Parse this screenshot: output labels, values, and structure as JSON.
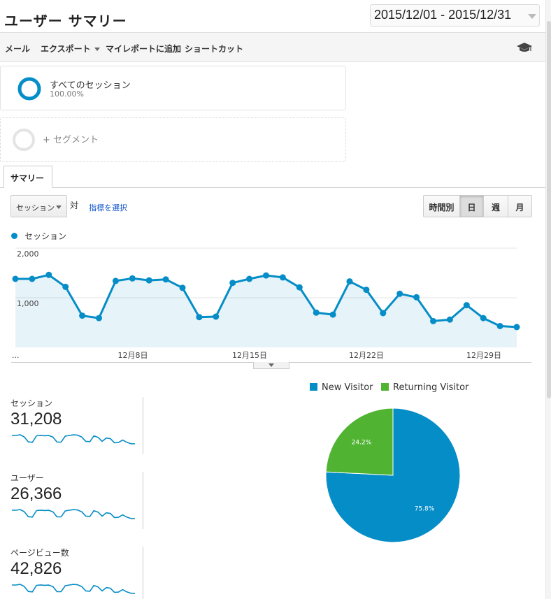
{
  "header": {
    "title": "ユーザー サマリー",
    "date_range": "2015/12/01 - 2015/12/31"
  },
  "toolbar": {
    "mail": "メール",
    "export": "エクスポート",
    "add_to_dashboard": "マイレポートに追加",
    "shortcut": "ショートカット",
    "icon": "graduation-cap-icon"
  },
  "segments": {
    "all_sessions": {
      "name": "すべてのセッション",
      "percent": "100.00%"
    },
    "add_segment": "+ セグメント"
  },
  "tabs": {
    "summary": "サマリー"
  },
  "controls": {
    "metric": "セッション",
    "vs": "対",
    "select_metric": "指標を選択",
    "granularity": [
      "時間別",
      "日",
      "週",
      "月"
    ],
    "active_granularity": "日"
  },
  "colors": {
    "accent": "#058dc7",
    "returning": "#50b432"
  },
  "chart_data": [
    {
      "type": "area",
      "series": [
        {
          "name": "セッション",
          "values": [
            1380,
            1380,
            1460,
            1220,
            640,
            590,
            1340,
            1390,
            1350,
            1370,
            1200,
            610,
            620,
            1300,
            1380,
            1450,
            1410,
            1210,
            700,
            660,
            1330,
            1160,
            690,
            1080,
            1010,
            530,
            560,
            850,
            590,
            430,
            410
          ]
        }
      ],
      "x": [
        "2015-12-01",
        "2015-12-02",
        "2015-12-03",
        "2015-12-04",
        "2015-12-05",
        "2015-12-06",
        "2015-12-07",
        "2015-12-08",
        "2015-12-09",
        "2015-12-10",
        "2015-12-11",
        "2015-12-12",
        "2015-12-13",
        "2015-12-14",
        "2015-12-15",
        "2015-12-16",
        "2015-12-17",
        "2015-12-18",
        "2015-12-19",
        "2015-12-20",
        "2015-12-21",
        "2015-12-22",
        "2015-12-23",
        "2015-12-24",
        "2015-12-25",
        "2015-12-26",
        "2015-12-27",
        "2015-12-28",
        "2015-12-29",
        "2015-12-30",
        "2015-12-31"
      ],
      "x_tick_labels": [
        "...",
        "12月8日",
        "12月15日",
        "12月22日",
        "12月29日"
      ],
      "y_tick_labels": [
        "2,000",
        "1,000"
      ],
      "ylim": [
        0,
        2000
      ],
      "grid": true,
      "legend": "top-left"
    },
    {
      "type": "pie",
      "categories": [
        "New Visitor",
        "Returning Visitor"
      ],
      "values": [
        75.8,
        24.2
      ],
      "labels": [
        "75.8%",
        "24.2%"
      ],
      "legend": "top"
    }
  ],
  "kpis": [
    {
      "label": "セッション",
      "value": "31,208"
    },
    {
      "label": "ユーザー",
      "value": "26,366"
    },
    {
      "label": "ページビュー数",
      "value": "42,826"
    }
  ]
}
